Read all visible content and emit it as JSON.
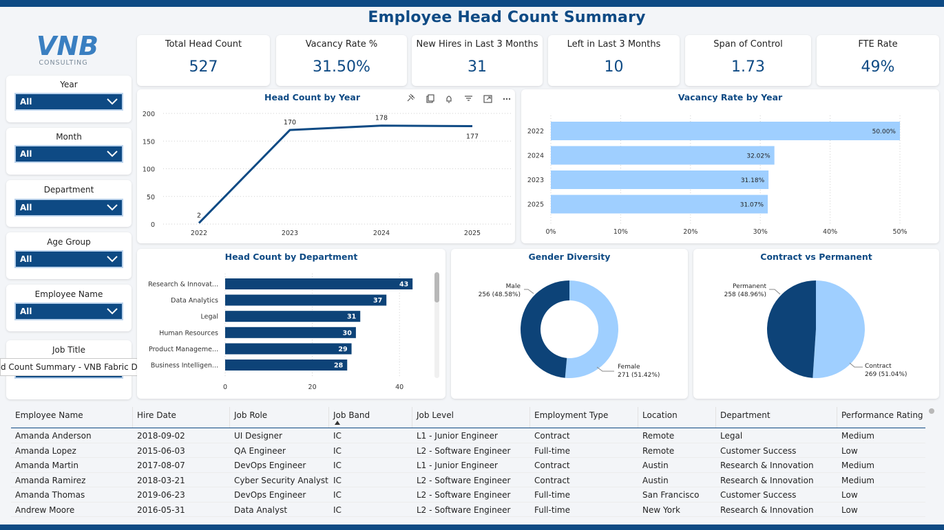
{
  "header": {
    "title": "Employee Head Count Summary"
  },
  "logo": {
    "brand": "VNB",
    "sub": "CONSULTING"
  },
  "slicers": [
    {
      "label": "Year",
      "value": "All"
    },
    {
      "label": "Month",
      "value": "All"
    },
    {
      "label": "Department",
      "value": "All"
    },
    {
      "label": "Age Group",
      "value": "All"
    },
    {
      "label": "Employee Name",
      "value": "All"
    },
    {
      "label": "Job Title",
      "value": ""
    }
  ],
  "tooltip": {
    "text": "d Count Summary - VNB Fabric Dev"
  },
  "kpis": [
    {
      "title": "Total Head Count",
      "value": "527"
    },
    {
      "title": "Vacancy Rate %",
      "value": "31.50%"
    },
    {
      "title": "New Hires in Last 3 Months",
      "value": "31"
    },
    {
      "title": "Left in Last 3 Months",
      "value": "10"
    },
    {
      "title": "Span of Control",
      "value": "1.73"
    },
    {
      "title": "FTE Rate",
      "value": "49%"
    }
  ],
  "colors": {
    "brand": "#0e4a84",
    "light": "#9fcfff",
    "accent": "#0d4378"
  },
  "chart_data": [
    {
      "type": "line",
      "title": "Head Count by Year",
      "categories": [
        "2022",
        "2023",
        "2024",
        "2025"
      ],
      "values": [
        2,
        170,
        178,
        177
      ],
      "data_labels": [
        "2",
        "170",
        "178",
        "177"
      ],
      "yticks": [
        "0",
        "50",
        "100",
        "150",
        "200"
      ],
      "ylim": [
        0,
        200
      ],
      "grid": true,
      "toolbar": [
        "pin-icon",
        "copy-icon",
        "bell-icon",
        "filter-icon",
        "focus-icon",
        "more-icon"
      ]
    },
    {
      "type": "bar",
      "orientation": "horizontal",
      "title": "Vacancy Rate by Year",
      "categories": [
        "2022",
        "2024",
        "2023",
        "2025"
      ],
      "values": [
        50.0,
        32.02,
        31.18,
        31.07
      ],
      "data_labels": [
        "50.00%",
        "32.02%",
        "31.18%",
        "31.07%"
      ],
      "xticks": [
        "0%",
        "10%",
        "20%",
        "30%",
        "40%",
        "50%"
      ],
      "xlim": [
        0,
        50
      ],
      "grid": true
    },
    {
      "type": "bar",
      "orientation": "horizontal",
      "title": "Head Count by Department",
      "categories": [
        "Research & Innovat...",
        "Data Analytics",
        "Legal",
        "Human Resources",
        "Product Manageme...",
        "Business Intelligen..."
      ],
      "values": [
        43,
        37,
        31,
        30,
        29,
        28
      ],
      "data_labels": [
        "43",
        "37",
        "31",
        "30",
        "29",
        "28"
      ],
      "xticks": [
        "0",
        "20",
        "40"
      ],
      "xlim": [
        0,
        48
      ],
      "grid": true
    },
    {
      "type": "pie",
      "variant": "donut",
      "title": "Gender Diversity",
      "labels": [
        "Male",
        "Female"
      ],
      "values": [
        256,
        271
      ],
      "data_labels": [
        "256 (48.58%)",
        "271 (51.42%)"
      ]
    },
    {
      "type": "pie",
      "title": "Contract vs Permanent",
      "labels": [
        "Permanent",
        "Contract"
      ],
      "values": [
        258,
        269
      ],
      "data_labels": [
        "258 (48.96%)",
        "269 (51.04%)"
      ]
    }
  ],
  "table": {
    "columns": [
      "Employee Name",
      "Hire Date",
      "Job Role",
      "Job Band",
      "Job Level",
      "Employment Type",
      "Location",
      "Department",
      "Performance Rating"
    ],
    "rows": [
      [
        "Amanda Anderson",
        "2018-09-02",
        "UI Designer",
        "IC",
        "L1 - Junior Engineer",
        "Contract",
        "Remote",
        "Legal",
        "Medium"
      ],
      [
        "Amanda Lopez",
        "2015-06-03",
        "QA Engineer",
        "IC",
        "L2 - Software Engineer",
        "Full-time",
        "Remote",
        "Customer Success",
        "Low"
      ],
      [
        "Amanda Martin",
        "2017-08-07",
        "DevOps Engineer",
        "IC",
        "L1 - Junior Engineer",
        "Contract",
        "Austin",
        "Research & Innovation",
        "Medium"
      ],
      [
        "Amanda Ramirez",
        "2018-03-21",
        "Cyber Security Analyst",
        "IC",
        "L2 - Software Engineer",
        "Contract",
        "Austin",
        "Research & Innovation",
        "Medium"
      ],
      [
        "Amanda Thomas",
        "2019-06-23",
        "DevOps Engineer",
        "IC",
        "L2 - Software Engineer",
        "Full-time",
        "San Francisco",
        "Customer Success",
        "Low"
      ],
      [
        "Andrew Moore",
        "2016-05-31",
        "Data Analyst",
        "IC",
        "L2 - Software Engineer",
        "Full-time",
        "New York",
        "Research & Innovation",
        "Low"
      ]
    ]
  }
}
